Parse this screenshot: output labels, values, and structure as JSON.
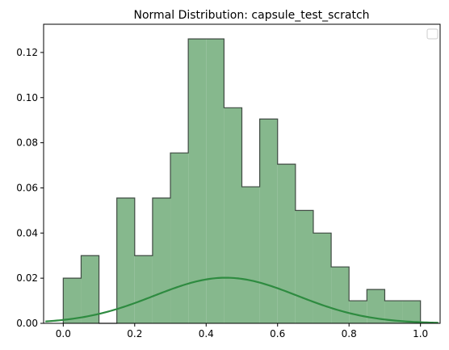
{
  "chart_data": {
    "type": "bar",
    "title": "Normal Distribution: capsule_test_scratch",
    "xlabel": "",
    "ylabel": "",
    "xlim": [
      -0.055,
      1.055
    ],
    "ylim": [
      0,
      0.1325
    ],
    "x_ticks": [
      0.0,
      0.2,
      0.4,
      0.6,
      0.8,
      1.0
    ],
    "x_tick_labels": [
      "0.0",
      "0.2",
      "0.4",
      "0.6",
      "0.8",
      "1.0"
    ],
    "y_ticks": [
      0.0,
      0.02,
      0.04,
      0.06,
      0.08,
      0.1,
      0.12
    ],
    "y_tick_labels": [
      "0.00",
      "0.02",
      "0.04",
      "0.06",
      "0.08",
      "0.10",
      "0.12"
    ],
    "grid": false,
    "legend": "top-right (empty box)",
    "bin_edges": [
      0.0,
      0.05,
      0.1,
      0.15,
      0.2,
      0.25,
      0.3,
      0.35,
      0.4,
      0.45,
      0.5,
      0.55,
      0.6,
      0.65,
      0.7,
      0.75,
      0.8,
      0.85,
      0.9,
      0.95,
      1.0
    ],
    "series": [
      {
        "kind": "histogram-step",
        "values": [
          0.02,
          0.03,
          0.0,
          0.0555,
          0.03,
          0.0555,
          0.0755,
          0.126,
          0.126,
          0.0955,
          0.0605,
          0.0905,
          0.0705,
          0.05,
          0.04,
          0.025,
          0.01,
          0.015,
          0.01,
          0.01
        ],
        "fill": "#86b88d",
        "edge": "#3f4a42"
      },
      {
        "kind": "normal-pdf-curve",
        "mean": 0.455,
        "std": 0.2,
        "peak": 0.0202,
        "x_range": [
          -0.05,
          1.05
        ],
        "color": "#2e8b40"
      }
    ]
  }
}
